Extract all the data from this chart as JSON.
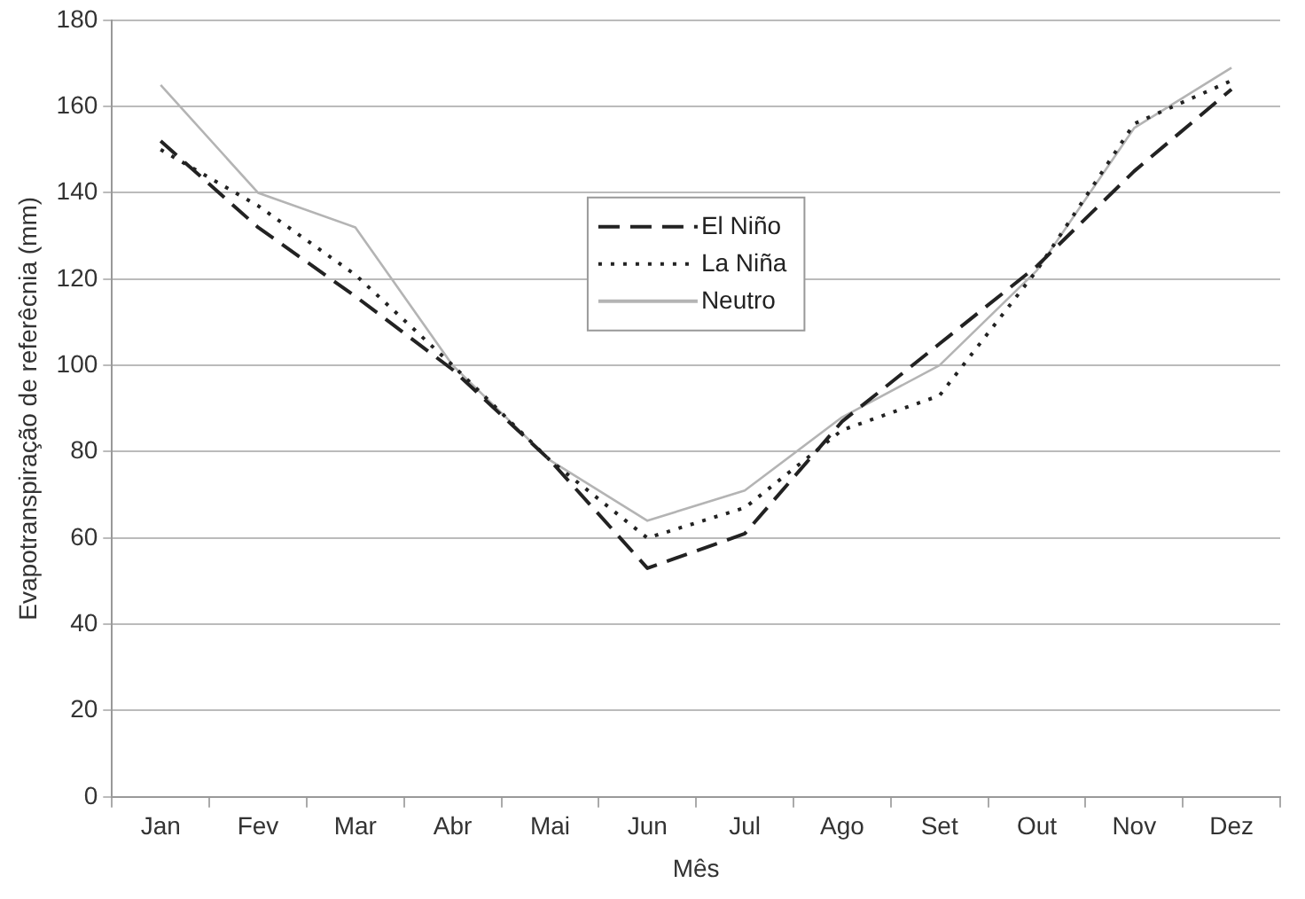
{
  "chart_data": {
    "type": "line",
    "xlabel": "Mês",
    "ylabel": "Evapotranspiração de referêcnia (mm)",
    "categories": [
      "Jan",
      "Fev",
      "Mar",
      "Abr",
      "Mai",
      "Jun",
      "Jul",
      "Ago",
      "Set",
      "Out",
      "Nov",
      "Dez"
    ],
    "series": [
      {
        "name": "El Niño",
        "color": "#222222",
        "line_style": "dashed",
        "values": [
          152,
          132,
          116,
          99,
          78,
          53,
          61,
          87,
          105,
          123,
          145,
          164
        ]
      },
      {
        "name": "La Niña",
        "color": "#222222",
        "line_style": "dotted",
        "values": [
          150,
          137,
          121,
          100,
          78,
          60,
          67,
          85,
          93,
          122,
          156,
          166
        ]
      },
      {
        "name": "Neutro",
        "color": "#b4b4b4",
        "line_style": "solid",
        "values": [
          165,
          140,
          132,
          100,
          78,
          64,
          71,
          88,
          100,
          122,
          155,
          169
        ]
      }
    ],
    "ylim": [
      0,
      180
    ],
    "yticks": [
      0,
      20,
      40,
      60,
      80,
      100,
      120,
      140,
      160,
      180
    ],
    "grid": "y",
    "legend": "top center",
    "marker": "none"
  }
}
